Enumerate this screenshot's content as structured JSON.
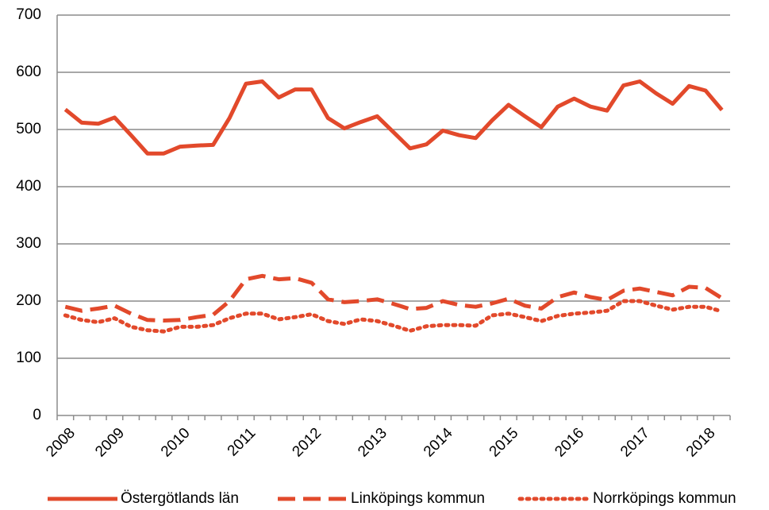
{
  "chart_data": {
    "type": "line",
    "categories": [
      "2008",
      null,
      null,
      "2009",
      null,
      null,
      null,
      "2010",
      null,
      null,
      null,
      "2011",
      null,
      null,
      null,
      "2012",
      null,
      null,
      null,
      "2013",
      null,
      null,
      null,
      "2014",
      null,
      null,
      null,
      "2015",
      null,
      null,
      null,
      "2016",
      null,
      null,
      null,
      "2017",
      null,
      null,
      null,
      "2018",
      null
    ],
    "series": [
      {
        "name": "Östergötlands län",
        "color": "#e2492b",
        "dash": "solid",
        "values": [
          535,
          512,
          510,
          521,
          490,
          458,
          458,
          470,
          472,
          473,
          520,
          580,
          584,
          556,
          570,
          570,
          520,
          502,
          513,
          523,
          495,
          467,
          474,
          498,
          490,
          485,
          516,
          543,
          523,
          504,
          540,
          554,
          540,
          533,
          577,
          584,
          563,
          545,
          576,
          568,
          534
        ]
      },
      {
        "name": "Linköpings kommun",
        "color": "#e2492b",
        "dash": "dashed",
        "values": [
          190,
          183,
          187,
          192,
          178,
          167,
          166,
          167,
          172,
          176,
          200,
          238,
          244,
          238,
          240,
          232,
          203,
          198,
          200,
          203,
          195,
          186,
          188,
          200,
          193,
          190,
          196,
          204,
          192,
          187,
          207,
          215,
          207,
          202,
          218,
          222,
          216,
          210,
          225,
          223,
          205
        ]
      },
      {
        "name": "Norrköpings kommun",
        "color": "#e2492b",
        "dash": "dotted",
        "values": [
          175,
          167,
          163,
          170,
          155,
          149,
          147,
          155,
          155,
          158,
          170,
          178,
          178,
          168,
          172,
          177,
          165,
          160,
          168,
          165,
          157,
          148,
          156,
          158,
          158,
          157,
          175,
          178,
          172,
          165,
          174,
          178,
          180,
          183,
          200,
          200,
          192,
          185,
          190,
          190,
          182
        ]
      }
    ],
    "ylim": [
      0,
      700
    ],
    "yticks": [
      0,
      100,
      200,
      300,
      400,
      500,
      600,
      700
    ],
    "grid": true,
    "legend": "bottom"
  }
}
